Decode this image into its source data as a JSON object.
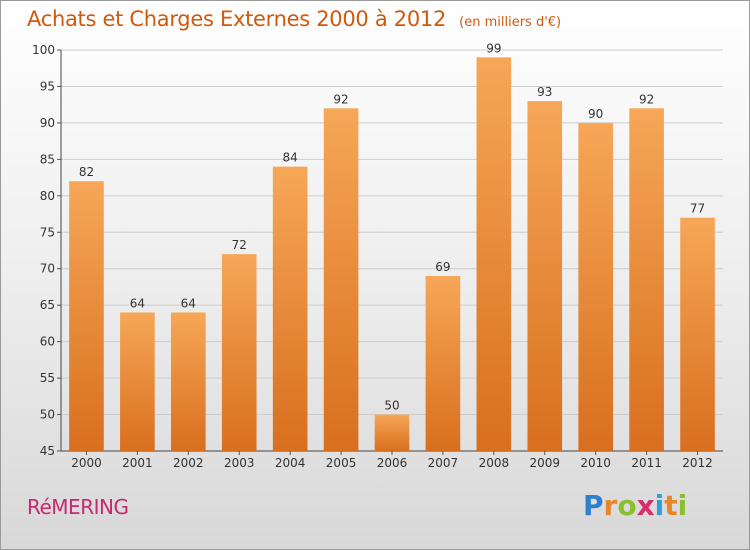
{
  "chart_data": {
    "type": "bar",
    "title": "Achats et Charges Externes 2000 à 2012",
    "subtitle": "(en milliers d'€)",
    "categories": [
      "2000",
      "2001",
      "2002",
      "2003",
      "2004",
      "2005",
      "2006",
      "2007",
      "2008",
      "2009",
      "2010",
      "2011",
      "2012"
    ],
    "values": [
      82,
      64,
      64,
      72,
      84,
      92,
      50,
      69,
      99,
      93,
      90,
      92,
      77
    ],
    "ylim": [
      45,
      100
    ],
    "yticks": [
      45,
      50,
      55,
      60,
      65,
      70,
      75,
      80,
      85,
      90,
      95,
      100
    ],
    "grid": true,
    "xlabel": "",
    "ylabel": "",
    "colors": {
      "bar_top": "#f6a757",
      "bar_bottom": "#d86f1e",
      "title": "#cf5a0e",
      "grid": "#cccccc"
    }
  },
  "footer": {
    "commune": "RéMERING",
    "brand": [
      "P",
      "r",
      "o",
      "x",
      "i",
      "t",
      "i"
    ],
    "brand_colors": [
      "#2f7fcf",
      "#e8862a",
      "#8cbf2f",
      "#d62f6b",
      "#2f9fd6",
      "#e8862a",
      "#8cbf2f"
    ]
  }
}
